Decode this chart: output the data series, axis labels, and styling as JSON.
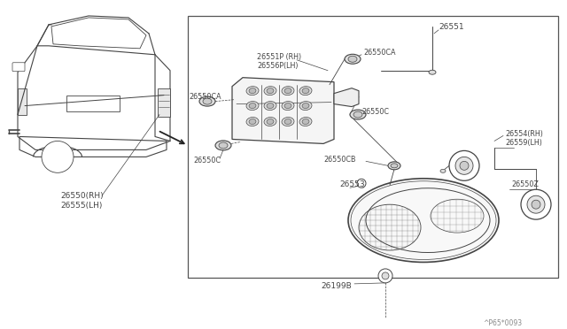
{
  "bg_color": "#ffffff",
  "lc": "#444444",
  "lc_thin": "#666666",
  "watermark": "^P65*0093",
  "labels": {
    "26551P_RH": "26551P (RH)",
    "26556P_LH": "26556P(LH)",
    "26550CA_top": "26550CA",
    "26550CA_left": "26550CA",
    "26551": "26551",
    "26550C_right": "26550C",
    "26550C_bottom": "26550C",
    "26550CB": "26550CB",
    "26553": "26553",
    "26554_RH": "26554(RH)",
    "26559_LH": "26559(LH)",
    "26550Z": "26550Z",
    "26550_RH": "26550(RH)",
    "26555_LH": "26555(LH)",
    "26199B": "26199B"
  }
}
